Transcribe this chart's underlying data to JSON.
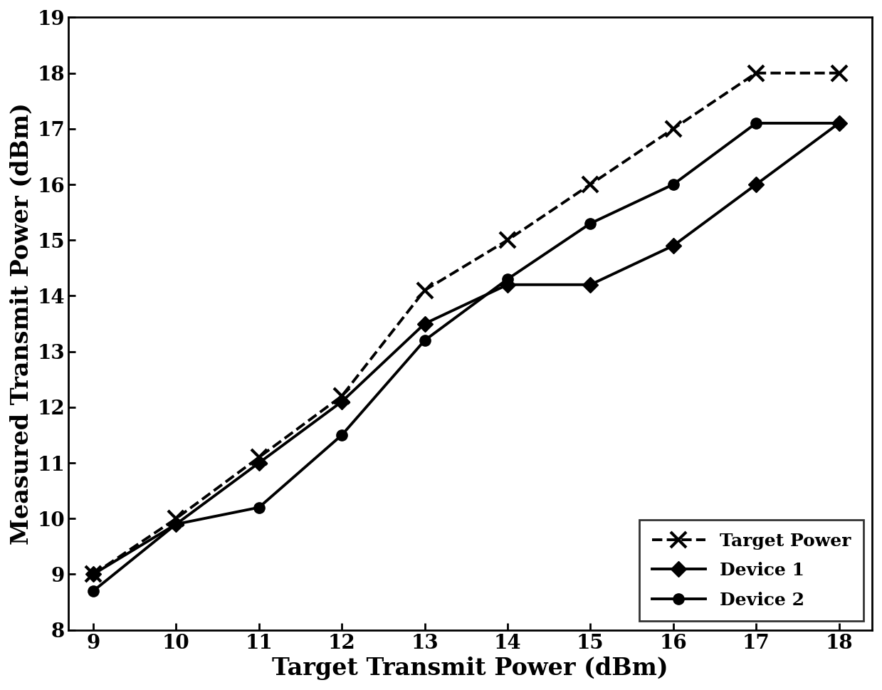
{
  "x": [
    9,
    10,
    11,
    12,
    13,
    14,
    15,
    16,
    17,
    18
  ],
  "target_power": [
    9.0,
    10.0,
    11.1,
    12.2,
    14.1,
    15.0,
    16.0,
    17.0,
    18.0,
    18.0
  ],
  "device1": [
    9.0,
    9.9,
    11.0,
    12.1,
    13.5,
    14.2,
    14.2,
    14.9,
    16.0,
    17.1
  ],
  "device2": [
    8.7,
    9.9,
    10.2,
    11.5,
    13.2,
    14.3,
    15.3,
    16.0,
    17.1,
    17.1
  ],
  "xlabel": "Target Transmit Power (dBm)",
  "ylabel": "Measured Transmit Power (dBm)",
  "xlim": [
    8.7,
    18.4
  ],
  "ylim": [
    8.0,
    19.0
  ],
  "xticks": [
    9,
    10,
    11,
    12,
    13,
    14,
    15,
    16,
    17,
    18
  ],
  "yticks": [
    8,
    9,
    10,
    11,
    12,
    13,
    14,
    15,
    16,
    17,
    18,
    19
  ],
  "legend_labels": [
    "Target Power",
    "Device 1",
    "Device 2"
  ],
  "line_color": "#000000",
  "background_color": "#ffffff",
  "tick_fontsize": 20,
  "label_fontsize": 24,
  "legend_fontsize": 18
}
